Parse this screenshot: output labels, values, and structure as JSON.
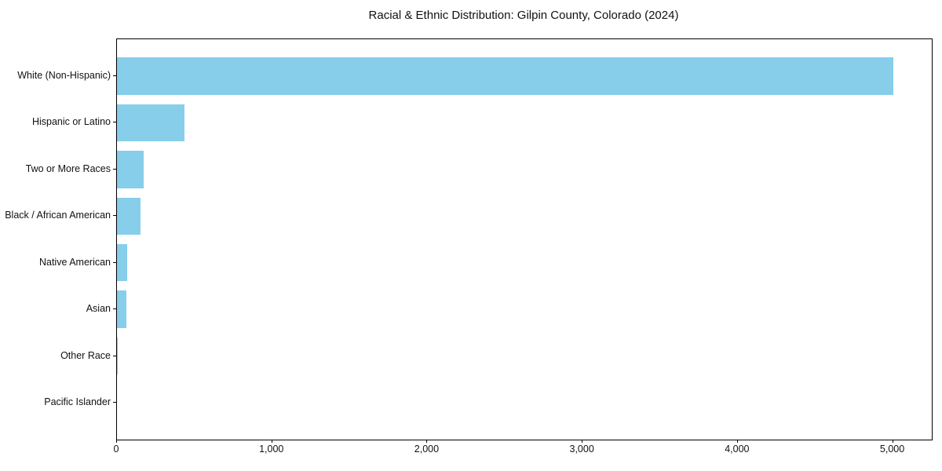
{
  "chart_data": {
    "type": "bar",
    "orientation": "horizontal",
    "title": "Racial & Ethnic Distribution: Gilpin County, Colorado (2024)",
    "categories": [
      "White (Non-Hispanic)",
      "Hispanic or Latino",
      "Two or More Races",
      "Black / African American",
      "Native American",
      "Asian",
      "Other Race",
      "Pacific Islander"
    ],
    "values": [
      5000,
      435,
      170,
      150,
      66,
      63,
      5,
      0
    ],
    "xlabel": "",
    "ylabel": "",
    "xlim": [
      0,
      5250
    ],
    "x_ticks": [
      0,
      1000,
      2000,
      3000,
      4000,
      5000
    ],
    "x_tick_labels": [
      "0",
      "1,000",
      "2,000",
      "3,000",
      "4,000",
      "5,000"
    ],
    "bar_color": "#87CEEB",
    "axis_color": "#000000",
    "text_color": "#111111",
    "background_color": "#ffffff",
    "grid": false,
    "legend": null
  }
}
